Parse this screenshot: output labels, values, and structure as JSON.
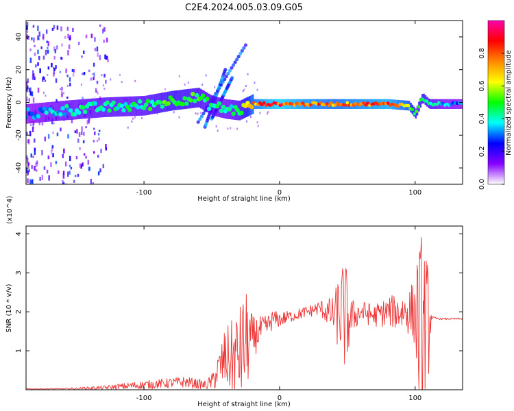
{
  "title": "C2E4.2024.005.03.09.G05",
  "chart_data": [
    {
      "type": "heatmap",
      "name": "spectrogram",
      "xlabel": "Height of straight line (km)",
      "ylabel": "Frequency (Hz)",
      "xlim": [
        -187,
        135
      ],
      "ylim": [
        -50,
        50
      ],
      "xticks": [
        -100,
        0,
        100
      ],
      "xtick_labels": [
        "-100",
        "0",
        "100"
      ],
      "yticks": [
        40,
        20,
        0,
        -20,
        -40
      ],
      "ytick_labels": [
        "40",
        "20",
        "0",
        "-20",
        "-40"
      ],
      "colorbar": {
        "label": "Normalized spectral amplitude",
        "range": [
          0,
          1
        ],
        "ticks": [
          0.0,
          0.2,
          0.4,
          0.6,
          0.8
        ],
        "tick_labels": [
          "0.0",
          "0.2",
          "0.4",
          "0.6",
          "0.8"
        ],
        "colors": [
          "#ffffff",
          "#8800ff",
          "#0000ff",
          "#00ffff",
          "#00ff00",
          "#ffff00",
          "#ff8800",
          "#ff0000",
          "#ff00aa"
        ]
      },
      "ridge": {
        "x": [
          -187,
          -160,
          -130,
          -100,
          -80,
          -60,
          -50,
          -40,
          -30,
          -20,
          -10,
          0,
          20,
          40,
          60,
          80,
          95,
          100,
          105,
          110,
          120,
          135
        ],
        "freq": [
          -7,
          -5,
          -3,
          -2,
          1,
          3,
          -2,
          -4,
          -5,
          -1,
          -1,
          -1,
          -1,
          -1,
          -1,
          -1,
          -2,
          -7,
          3,
          -1,
          -1,
          -1
        ],
        "amplitude": [
          0.35,
          0.45,
          0.5,
          0.5,
          0.6,
          0.55,
          0.5,
          0.45,
          0.55,
          0.85,
          0.95,
          1.0,
          0.9,
          0.85,
          0.9,
          0.95,
          0.8,
          0.6,
          0.6,
          0.55,
          0.4,
          0.35
        ]
      }
    },
    {
      "type": "line",
      "name": "snr",
      "xlabel": "Height of straight line (km)",
      "ylabel": "SNR (10 * v/v)",
      "y_multiplier": "(x10^4)",
      "color": "#ee3333",
      "xlim": [
        -187,
        135
      ],
      "ylim": [
        0,
        4.2
      ],
      "xticks": [
        -100,
        0,
        100
      ],
      "xtick_labels": [
        "-100",
        "0",
        "100"
      ],
      "yticks": [
        1,
        2,
        3,
        4
      ],
      "ytick_labels": [
        "1",
        "2",
        "3",
        "4"
      ],
      "envelope": {
        "x": [
          -187,
          -160,
          -130,
          -110,
          -90,
          -70,
          -55,
          -50,
          -45,
          -40,
          -35,
          -30,
          -25,
          -20,
          -15,
          -10,
          -5,
          0,
          10,
          20,
          30,
          40,
          45,
          48,
          50,
          52,
          55,
          60,
          70,
          80,
          90,
          95,
          100,
          102,
          104,
          106,
          108,
          110,
          112,
          115,
          120,
          135
        ],
        "base": [
          0.02,
          0.02,
          0.05,
          0.1,
          0.15,
          0.2,
          0.12,
          0.2,
          0.5,
          0.8,
          0.8,
          0.9,
          1.2,
          1.3,
          1.5,
          1.6,
          1.8,
          1.8,
          1.9,
          2.0,
          2.1,
          1.9,
          2.0,
          1.9,
          1.8,
          1.8,
          1.9,
          2.0,
          1.9,
          2.0,
          2.0,
          2.0,
          2.0,
          1.7,
          1.5,
          1.4,
          1.5,
          1.8,
          1.85,
          1.83,
          1.82,
          1.82
        ],
        "amp": [
          0.01,
          0.02,
          0.05,
          0.1,
          0.12,
          0.15,
          0.12,
          0.2,
          0.5,
          0.8,
          1.0,
          1.2,
          1.4,
          0.6,
          0.4,
          0.3,
          0.25,
          0.2,
          0.15,
          0.15,
          0.2,
          0.5,
          1.2,
          1.5,
          1.2,
          0.6,
          0.4,
          0.3,
          0.3,
          0.4,
          0.5,
          0.6,
          0.9,
          2.0,
          2.5,
          2.8,
          2.0,
          1.5,
          0.05,
          0.03,
          0.02,
          0.02
        ]
      }
    }
  ]
}
